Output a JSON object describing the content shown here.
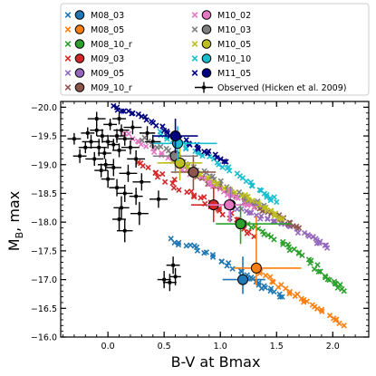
{
  "chart_data": {
    "type": "scatter",
    "xlabel": "B-V at Bmax",
    "ylabel_main": "M",
    "ylabel_sub": "B",
    "ylabel_tail": ", max",
    "xlim": [
      -0.42,
      2.32
    ],
    "ylim": [
      -16.0,
      -20.1
    ],
    "y_inverted": true,
    "xticks": [
      0.0,
      0.5,
      1.0,
      1.5,
      2.0
    ],
    "xtick_labels": [
      "0.0",
      "0.5",
      "1.0",
      "1.5",
      "2.0"
    ],
    "yticks": [
      -20.0,
      -19.5,
      -19.0,
      -18.5,
      -18.0,
      -17.5,
      -17.0,
      -16.5,
      -16.0
    ],
    "ytick_labels": [
      "−20.0",
      "−19.5",
      "−19.0",
      "−18.5",
      "−18.0",
      "−17.5",
      "−17.0",
      "−16.5",
      "−16.0"
    ],
    "grid": false,
    "legend_placement": "above-plot",
    "legend_columns": [
      [
        "M08_03",
        "M08_05",
        "M08_10_r",
        "M09_03",
        "M09_05",
        "M09_10_r"
      ],
      [
        "M10_02",
        "M10_03",
        "M10_05",
        "M10_10",
        "M11_05",
        "Observed (Hicken et al. 2009)"
      ]
    ],
    "models": [
      {
        "name": "M08_03",
        "color": "#1f77b4",
        "track": [
          [
            0.55,
            -17.7
          ],
          [
            0.85,
            -17.5
          ],
          [
            1.15,
            -17.15
          ],
          [
            1.35,
            -16.9
          ],
          [
            1.55,
            -16.7
          ]
        ],
        "spread": 0.07,
        "peak": [
          1.2,
          -17.0
        ],
        "xerr": [
          0.18,
          0.2
        ],
        "yerr": [
          0.4,
          0.25
        ]
      },
      {
        "name": "M08_05",
        "color": "#ff7f0e",
        "track": [
          [
            1.35,
            -17.15
          ],
          [
            1.6,
            -16.8
          ],
          [
            1.85,
            -16.55
          ],
          [
            2.1,
            -16.2
          ]
        ],
        "spread": 0.06,
        "peak": [
          1.32,
          -17.2
        ],
        "xerr": [
          0.2,
          0.4
        ],
        "yerr": [
          0.9,
          0.3
        ]
      },
      {
        "name": "M08_10_r",
        "color": "#2ca02c",
        "track": [
          [
            1.2,
            -18.0
          ],
          [
            1.5,
            -17.7
          ],
          [
            1.75,
            -17.4
          ],
          [
            1.95,
            -17.05
          ],
          [
            2.1,
            -16.8
          ]
        ],
        "spread": 0.06,
        "peak": [
          1.18,
          -17.97
        ],
        "xerr": [
          0.22,
          0.45
        ],
        "yerr": [
          0.35,
          0.35
        ]
      },
      {
        "name": "M09_03",
        "color": "#d62728",
        "track": [
          [
            0.25,
            -19.05
          ],
          [
            0.55,
            -18.7
          ],
          [
            0.85,
            -18.4
          ],
          [
            1.1,
            -18.1
          ],
          [
            1.3,
            -17.75
          ]
        ],
        "spread": 0.09,
        "peak": [
          0.94,
          -18.3
        ],
        "xerr": [
          0.2,
          0.2
        ],
        "yerr": [
          0.3,
          0.3
        ]
      },
      {
        "name": "M09_05",
        "color": "#9467bd",
        "track": [
          [
            1.05,
            -18.3
          ],
          [
            1.35,
            -18.1
          ],
          [
            1.6,
            -17.95
          ],
          [
            1.8,
            -17.75
          ],
          [
            1.95,
            -17.55
          ]
        ],
        "spread": 0.05,
        "peak": [
          1.09,
          -18.3
        ],
        "xerr": [
          0.2,
          0.25
        ],
        "yerr": [
          0.3,
          0.3
        ]
      },
      {
        "name": "M09_10_r",
        "color": "#8c564b",
        "track": [
          [
            0.75,
            -18.85
          ],
          [
            1.05,
            -18.55
          ],
          [
            1.3,
            -18.3
          ],
          [
            1.5,
            -18.1
          ],
          [
            1.7,
            -17.9
          ]
        ],
        "spread": 0.06,
        "peak": [
          0.76,
          -18.87
        ],
        "xerr": [
          0.2,
          0.2
        ],
        "yerr": [
          0.3,
          0.3
        ]
      },
      {
        "name": "M10_02",
        "color": "#e377c2",
        "track": [
          [
            0.15,
            -19.55
          ],
          [
            0.45,
            -19.2
          ],
          [
            0.75,
            -18.85
          ],
          [
            1.05,
            -18.5
          ],
          [
            1.3,
            -18.25
          ]
        ],
        "spread": 0.06,
        "peak": [
          1.08,
          -18.3
        ],
        "xerr": [
          0.2,
          0.2
        ],
        "yerr": [
          0.3,
          0.3
        ]
      },
      {
        "name": "M10_03",
        "color": "#7f7f7f",
        "track": [
          [
            0.3,
            -19.45
          ],
          [
            0.6,
            -19.15
          ],
          [
            0.9,
            -18.8
          ],
          [
            1.15,
            -18.5
          ],
          [
            1.4,
            -18.25
          ]
        ],
        "spread": 0.06,
        "peak": [
          0.6,
          -19.15
        ],
        "xerr": [
          0.2,
          0.2
        ],
        "yerr": [
          0.3,
          0.3
        ]
      },
      {
        "name": "M10_05",
        "color": "#bcbd22",
        "track": [
          [
            0.6,
            -19.05
          ],
          [
            0.9,
            -18.75
          ],
          [
            1.2,
            -18.45
          ],
          [
            1.4,
            -18.25
          ],
          [
            1.55,
            -18.05
          ]
        ],
        "spread": 0.05,
        "peak": [
          0.64,
          -19.03
        ],
        "xerr": [
          0.2,
          0.2
        ],
        "yerr": [
          0.3,
          0.3
        ]
      },
      {
        "name": "M10_10",
        "color": "#17becf",
        "track": [
          [
            0.45,
            -19.55
          ],
          [
            0.75,
            -19.25
          ],
          [
            1.05,
            -18.95
          ],
          [
            1.3,
            -18.6
          ],
          [
            1.5,
            -18.35
          ]
        ],
        "spread": 0.06,
        "peak": [
          0.62,
          -19.37
        ],
        "xerr": [
          0.22,
          0.35
        ],
        "yerr": [
          0.3,
          0.3
        ]
      },
      {
        "name": "M11_05",
        "color": "#000080",
        "track": [
          [
            0.05,
            -20.0
          ],
          [
            0.3,
            -19.85
          ],
          [
            0.55,
            -19.55
          ],
          [
            0.8,
            -19.3
          ],
          [
            1.05,
            -19.05
          ]
        ],
        "spread": 0.05,
        "peak": [
          0.6,
          -19.5
        ],
        "xerr": [
          0.2,
          0.2
        ],
        "yerr": [
          0.3,
          0.3
        ]
      }
    ],
    "observed": {
      "name": "Observed (Hicken et al. 2009)",
      "color": "#000000",
      "points": [
        [
          -0.15,
          -19.4,
          0.08,
          0.12
        ],
        [
          -0.1,
          -19.6,
          0.06,
          0.1
        ],
        [
          -0.08,
          -19.3,
          0.07,
          0.15
        ],
        [
          -0.05,
          -19.5,
          0.05,
          0.12
        ],
        [
          -0.03,
          -19.2,
          0.06,
          0.1
        ],
        [
          0.0,
          -19.4,
          0.05,
          0.12
        ],
        [
          0.02,
          -19.7,
          0.06,
          0.1
        ],
        [
          0.05,
          -19.35,
          0.05,
          0.1
        ],
        [
          -0.12,
          -19.1,
          0.08,
          0.12
        ],
        [
          -0.2,
          -19.3,
          0.06,
          0.1
        ],
        [
          0.08,
          -19.5,
          0.07,
          0.12
        ],
        [
          -0.06,
          -18.9,
          0.06,
          0.12
        ],
        [
          0.1,
          -19.25,
          0.06,
          0.12
        ],
        [
          -0.02,
          -19.0,
          0.07,
          0.1
        ],
        [
          0.15,
          -19.45,
          0.08,
          0.12
        ],
        [
          -0.1,
          -19.8,
          0.08,
          0.12
        ],
        [
          -0.18,
          -19.55,
          0.06,
          0.1
        ],
        [
          0.12,
          -19.6,
          0.07,
          0.1
        ],
        [
          0.2,
          -19.3,
          0.08,
          0.12
        ],
        [
          -0.25,
          -19.15,
          0.06,
          0.12
        ],
        [
          0.25,
          -19.1,
          0.08,
          0.15
        ],
        [
          0.1,
          -19.8,
          0.06,
          0.1
        ],
        [
          0.18,
          -18.85,
          0.08,
          0.15
        ],
        [
          0.05,
          -18.95,
          0.07,
          0.15
        ],
        [
          0.3,
          -18.7,
          0.08,
          0.15
        ],
        [
          0.15,
          -18.5,
          0.07,
          0.15
        ],
        [
          0.25,
          -18.45,
          0.06,
          0.15
        ],
        [
          0.08,
          -18.6,
          0.07,
          0.15
        ],
        [
          0.0,
          -18.75,
          0.06,
          0.15
        ],
        [
          0.12,
          -18.25,
          0.07,
          0.2
        ],
        [
          0.28,
          -18.15,
          0.08,
          0.2
        ],
        [
          0.1,
          -18.05,
          0.06,
          0.2
        ],
        [
          0.15,
          -17.85,
          0.07,
          0.2
        ],
        [
          0.45,
          -18.4,
          0.08,
          0.15
        ],
        [
          0.5,
          -17.0,
          0.06,
          0.15
        ],
        [
          0.55,
          -16.95,
          0.06,
          0.15
        ],
        [
          0.6,
          -17.05,
          0.05,
          0.15
        ],
        [
          0.58,
          -17.25,
          0.06,
          0.15
        ],
        [
          -0.3,
          -19.45,
          0.06,
          0.1
        ],
        [
          0.22,
          -19.65,
          0.08,
          0.12
        ],
        [
          0.35,
          -19.55,
          0.07,
          0.12
        ],
        [
          0.4,
          -19.4,
          0.07,
          0.12
        ]
      ]
    }
  }
}
